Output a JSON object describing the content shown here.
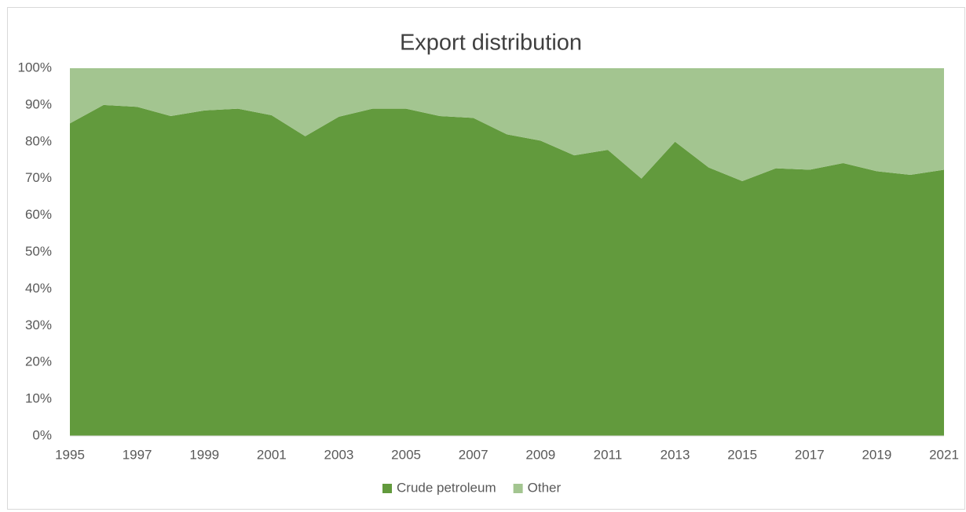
{
  "chart_data": {
    "type": "area",
    "stacked": true,
    "title": "Export distribution",
    "x": [
      1995,
      1996,
      1997,
      1998,
      1999,
      2000,
      2001,
      2002,
      2003,
      2004,
      2005,
      2006,
      2007,
      2008,
      2009,
      2010,
      2011,
      2012,
      2013,
      2014,
      2015,
      2016,
      2017,
      2018,
      2019,
      2020,
      2021
    ],
    "series": [
      {
        "name": "Crude petroleum",
        "color": "#629a3d",
        "values": [
          85,
          90,
          89.5,
          87,
          88.5,
          89,
          87.2,
          81.5,
          86.8,
          89,
          89,
          87,
          86.5,
          82,
          80.3,
          76.3,
          77.8,
          70,
          80,
          73,
          69.3,
          72.8,
          72.4,
          74.2,
          72,
          71,
          72.4
        ]
      },
      {
        "name": "Other",
        "color": "#a3c590",
        "values": [
          15,
          10,
          10.5,
          13,
          11.5,
          11,
          12.8,
          18.5,
          13.2,
          11,
          11,
          13,
          13.5,
          18,
          19.7,
          23.7,
          22.2,
          30,
          20,
          27,
          30.7,
          27.2,
          27.6,
          25.8,
          28,
          29,
          27.6
        ]
      }
    ],
    "xlim": [
      1995,
      2021
    ],
    "xticks": [
      1995,
      1997,
      1999,
      2001,
      2003,
      2005,
      2007,
      2009,
      2011,
      2013,
      2015,
      2017,
      2019,
      2021
    ],
    "ylim": [
      0,
      100
    ],
    "yticks": [
      {
        "value": 0,
        "label": "0%"
      },
      {
        "value": 10,
        "label": "10%"
      },
      {
        "value": 20,
        "label": "20%"
      },
      {
        "value": 30,
        "label": "30%"
      },
      {
        "value": 40,
        "label": "40%"
      },
      {
        "value": 50,
        "label": "50%"
      },
      {
        "value": 60,
        "label": "60%"
      },
      {
        "value": 70,
        "label": "70%"
      },
      {
        "value": 80,
        "label": "80%"
      },
      {
        "value": 90,
        "label": "90%"
      },
      {
        "value": 100,
        "label": "100%"
      }
    ],
    "legend": "bottom"
  }
}
